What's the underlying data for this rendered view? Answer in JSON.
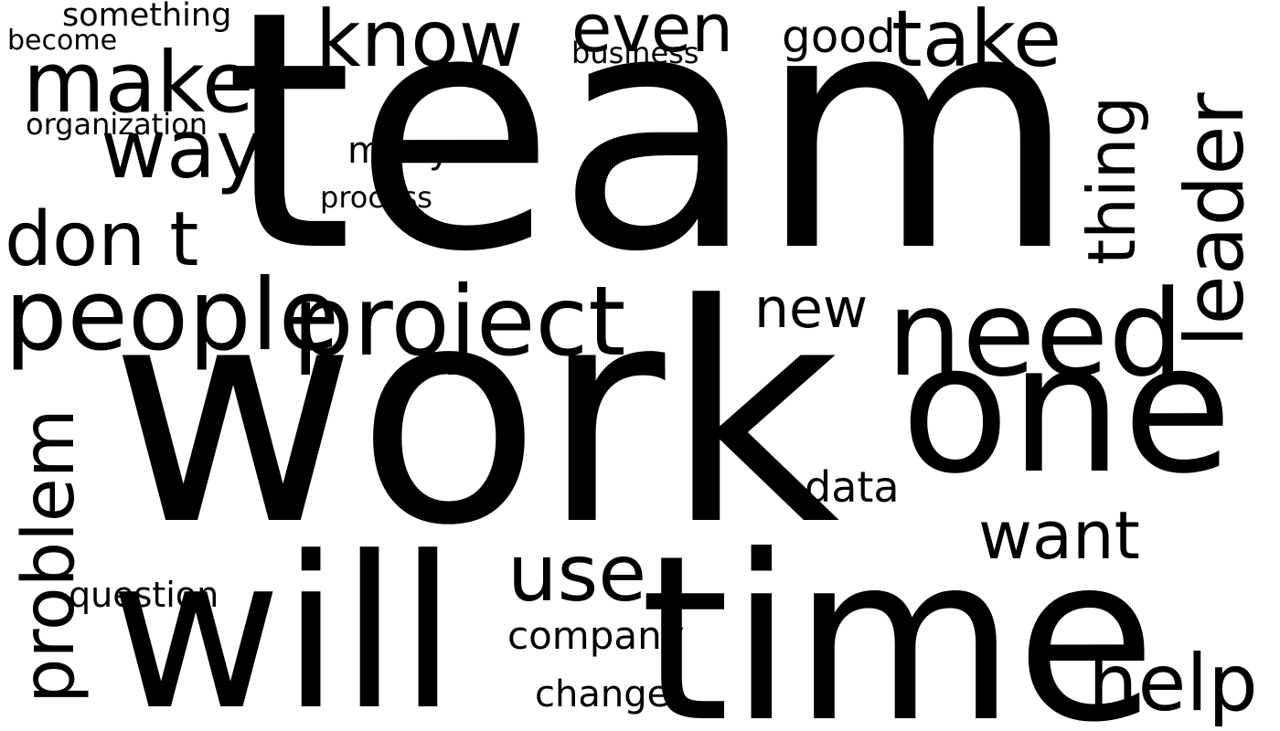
{
  "words": [
    {
      "text": "team"
    },
    {
      "text": "work"
    },
    {
      "text": "one"
    },
    {
      "text": "time"
    },
    {
      "text": "will"
    },
    {
      "text": "need"
    },
    {
      "text": "people"
    },
    {
      "text": "project"
    },
    {
      "text": "know"
    },
    {
      "text": "make"
    },
    {
      "text": "take"
    },
    {
      "text": "way"
    },
    {
      "text": "leader"
    },
    {
      "text": "problem"
    },
    {
      "text": "help"
    },
    {
      "text": "don t"
    },
    {
      "text": "use"
    },
    {
      "text": "want"
    },
    {
      "text": "thing"
    },
    {
      "text": "even"
    },
    {
      "text": "new"
    },
    {
      "text": "good"
    },
    {
      "text": "something"
    },
    {
      "text": "organization"
    },
    {
      "text": "data"
    },
    {
      "text": "question"
    },
    {
      "text": "change"
    },
    {
      "text": "company"
    },
    {
      "text": "many"
    },
    {
      "text": "process"
    },
    {
      "text": "business"
    },
    {
      "text": "become"
    }
  ]
}
